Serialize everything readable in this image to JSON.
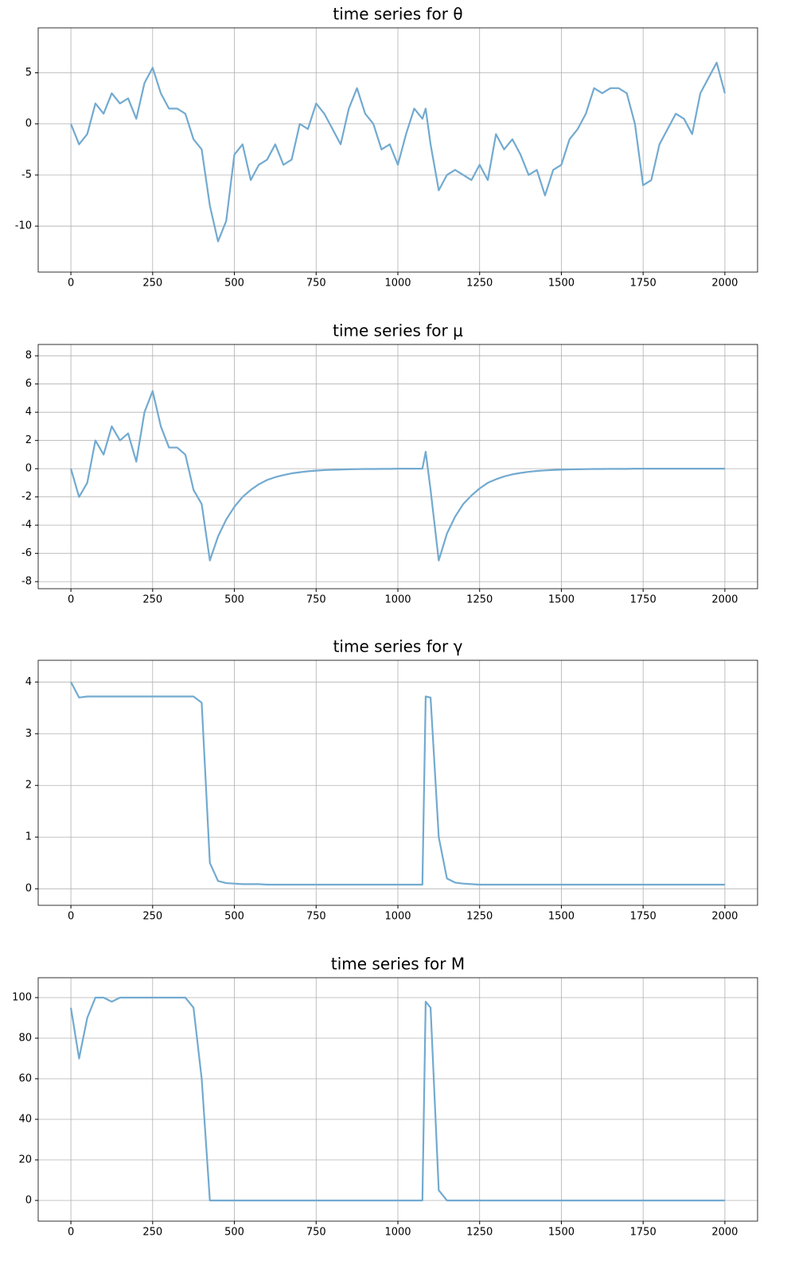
{
  "chart_data": [
    {
      "type": "line",
      "title": "time series for θ",
      "color": "#72aad0",
      "grid": true,
      "xlim": [
        -100,
        2100
      ],
      "xticks": [
        0,
        250,
        500,
        750,
        1000,
        1250,
        1500,
        1750,
        2000
      ],
      "ylim": [
        -14.5,
        9.4
      ],
      "yticks": [
        -10,
        -5,
        0,
        5
      ],
      "x": [
        0,
        25,
        50,
        75,
        100,
        125,
        150,
        175,
        200,
        225,
        250,
        275,
        300,
        325,
        350,
        375,
        400,
        425,
        450,
        475,
        500,
        525,
        550,
        575,
        600,
        625,
        650,
        675,
        700,
        725,
        750,
        775,
        800,
        825,
        850,
        875,
        900,
        925,
        950,
        975,
        1000,
        1025,
        1050,
        1075,
        1085,
        1100,
        1125,
        1150,
        1175,
        1200,
        1225,
        1250,
        1275,
        1300,
        1325,
        1350,
        1375,
        1400,
        1425,
        1450,
        1475,
        1500,
        1525,
        1550,
        1575,
        1600,
        1625,
        1650,
        1675,
        1700,
        1725,
        1750,
        1775,
        1800,
        1825,
        1850,
        1875,
        1900,
        1925,
        1950,
        1975,
        2000
      ],
      "values": [
        0,
        -2,
        -1,
        2,
        1,
        3,
        2,
        2.5,
        0.5,
        4,
        5.5,
        3,
        1.5,
        1.5,
        1,
        -1.5,
        -2.5,
        -8,
        -11.5,
        -9.5,
        -3,
        -2,
        -5.5,
        -4,
        -3.5,
        -2,
        -4,
        -3.5,
        0,
        -0.5,
        2,
        1,
        -0.5,
        -2,
        1.5,
        3.5,
        1,
        0,
        -2.5,
        -2,
        -4,
        -1,
        1.5,
        0.5,
        1.5,
        -2,
        -6.5,
        -5,
        -4.5,
        -5,
        -5.5,
        -4,
        -5.5,
        -1,
        -2.5,
        -1.5,
        -3,
        -5,
        -4.5,
        -7,
        -4.5,
        -4,
        -1.5,
        -0.5,
        1,
        3.5,
        3,
        3.5,
        3.5,
        3,
        0,
        -6,
        -5.5,
        -2,
        -0.5,
        1,
        0.5,
        -1,
        3,
        4.5,
        6,
        3
      ]
    },
    {
      "type": "line",
      "title": "time series for μ",
      "color": "#72aad0",
      "grid": true,
      "xlim": [
        -100,
        2100
      ],
      "xticks": [
        0,
        250,
        500,
        750,
        1000,
        1250,
        1500,
        1750,
        2000
      ],
      "ylim": [
        -8.5,
        8.8
      ],
      "yticks": [
        -8,
        -6,
        -4,
        -2,
        0,
        2,
        4,
        6,
        8
      ],
      "x": [
        0,
        25,
        50,
        75,
        100,
        125,
        150,
        175,
        200,
        225,
        250,
        275,
        300,
        325,
        350,
        375,
        400,
        425,
        450,
        475,
        500,
        525,
        550,
        575,
        600,
        625,
        650,
        675,
        700,
        725,
        750,
        775,
        800,
        825,
        850,
        875,
        900,
        925,
        950,
        975,
        1000,
        1025,
        1050,
        1075,
        1085,
        1100,
        1125,
        1150,
        1175,
        1200,
        1225,
        1250,
        1275,
        1300,
        1325,
        1350,
        1375,
        1400,
        1425,
        1450,
        1475,
        1500,
        1525,
        1550,
        1575,
        1600,
        1625,
        1650,
        1675,
        1700,
        1725,
        1750,
        1775,
        1800,
        1825,
        1850,
        1875,
        1900,
        1925,
        1950,
        1975,
        2000
      ],
      "values": [
        0,
        -2,
        -1,
        2,
        1,
        3,
        2,
        2.5,
        0.5,
        4,
        5.5,
        3,
        1.5,
        1.5,
        1,
        -1.5,
        -2.5,
        -6.5,
        -4.8,
        -3.6,
        -2.7,
        -2,
        -1.5,
        -1.1,
        -0.8,
        -0.6,
        -0.45,
        -0.33,
        -0.25,
        -0.18,
        -0.14,
        -0.1,
        -0.08,
        -0.06,
        -0.04,
        -0.03,
        -0.02,
        -0.02,
        -0.01,
        -0.01,
        0,
        0,
        0,
        0,
        1.2,
        -1.5,
        -6.5,
        -4.6,
        -3.4,
        -2.5,
        -1.9,
        -1.4,
        -1,
        -0.75,
        -0.55,
        -0.4,
        -0.3,
        -0.22,
        -0.16,
        -0.12,
        -0.09,
        -0.07,
        -0.05,
        -0.04,
        -0.03,
        -0.02,
        -0.02,
        -0.01,
        -0.01,
        -0.01,
        0,
        0,
        0,
        0,
        0,
        0,
        0,
        0,
        0,
        0,
        0,
        0
      ]
    },
    {
      "type": "line",
      "title": "time series for γ",
      "color": "#72aad0",
      "grid": true,
      "xlim": [
        -100,
        2100
      ],
      "xticks": [
        0,
        250,
        500,
        750,
        1000,
        1250,
        1500,
        1750,
        2000
      ],
      "ylim": [
        -0.32,
        4.42
      ],
      "yticks": [
        0,
        1,
        2,
        3,
        4
      ],
      "x": [
        0,
        25,
        50,
        75,
        100,
        125,
        150,
        175,
        200,
        225,
        250,
        275,
        300,
        325,
        350,
        375,
        400,
        425,
        450,
        475,
        500,
        525,
        550,
        575,
        600,
        625,
        650,
        675,
        700,
        725,
        750,
        775,
        800,
        825,
        850,
        875,
        900,
        925,
        950,
        975,
        1000,
        1025,
        1050,
        1075,
        1085,
        1100,
        1125,
        1150,
        1175,
        1200,
        1225,
        1250,
        1275,
        1300,
        1325,
        1350,
        1375,
        1400,
        1425,
        1450,
        1475,
        1500,
        1525,
        1550,
        1575,
        1600,
        1625,
        1650,
        1675,
        1700,
        1725,
        1750,
        1775,
        1800,
        1825,
        1850,
        1875,
        1900,
        1925,
        1950,
        1975,
        2000
      ],
      "values": [
        4,
        3.7,
        3.72,
        3.72,
        3.72,
        3.72,
        3.72,
        3.72,
        3.72,
        3.72,
        3.72,
        3.72,
        3.72,
        3.72,
        3.72,
        3.72,
        3.6,
        0.5,
        0.15,
        0.11,
        0.1,
        0.09,
        0.09,
        0.09,
        0.08,
        0.08,
        0.08,
        0.08,
        0.08,
        0.08,
        0.08,
        0.08,
        0.08,
        0.08,
        0.08,
        0.08,
        0.08,
        0.08,
        0.08,
        0.08,
        0.08,
        0.08,
        0.08,
        0.08,
        3.72,
        3.7,
        1,
        0.2,
        0.12,
        0.1,
        0.09,
        0.08,
        0.08,
        0.08,
        0.08,
        0.08,
        0.08,
        0.08,
        0.08,
        0.08,
        0.08,
        0.08,
        0.08,
        0.08,
        0.08,
        0.08,
        0.08,
        0.08,
        0.08,
        0.08,
        0.08,
        0.08,
        0.08,
        0.08,
        0.08,
        0.08,
        0.08,
        0.08,
        0.08,
        0.08,
        0.08,
        0.08
      ]
    },
    {
      "type": "line",
      "title": "time series for M",
      "color": "#72aad0",
      "grid": true,
      "xlim": [
        -100,
        2100
      ],
      "xticks": [
        0,
        250,
        500,
        750,
        1000,
        1250,
        1500,
        1750,
        2000
      ],
      "ylim": [
        -10.2,
        109.8
      ],
      "yticks": [
        0,
        20,
        40,
        60,
        80,
        100
      ],
      "x": [
        0,
        25,
        50,
        75,
        100,
        125,
        150,
        175,
        200,
        225,
        250,
        275,
        300,
        325,
        350,
        375,
        400,
        425,
        450,
        475,
        500,
        525,
        550,
        575,
        600,
        625,
        650,
        675,
        700,
        725,
        750,
        775,
        800,
        825,
        850,
        875,
        900,
        925,
        950,
        975,
        1000,
        1025,
        1050,
        1075,
        1085,
        1100,
        1125,
        1150,
        1175,
        1200,
        1225,
        1250,
        1275,
        1300,
        1325,
        1350,
        1375,
        1400,
        1425,
        1450,
        1475,
        1500,
        1525,
        1550,
        1575,
        1600,
        1625,
        1650,
        1675,
        1700,
        1725,
        1750,
        1775,
        1800,
        1825,
        1850,
        1875,
        1900,
        1925,
        1950,
        1975,
        2000
      ],
      "values": [
        95,
        70,
        90,
        100,
        100,
        98,
        100,
        100,
        100,
        100,
        100,
        100,
        100,
        100,
        100,
        95,
        60,
        0,
        0,
        0,
        0,
        0,
        0,
        0,
        0,
        0,
        0,
        0,
        0,
        0,
        0,
        0,
        0,
        0,
        0,
        0,
        0,
        0,
        0,
        0,
        0,
        0,
        0,
        0,
        98,
        95,
        5,
        0,
        0,
        0,
        0,
        0,
        0,
        0,
        0,
        0,
        0,
        0,
        0,
        0,
        0,
        0,
        0,
        0,
        0,
        0,
        0,
        0,
        0,
        0,
        0,
        0,
        0,
        0,
        0,
        0,
        0,
        0,
        0,
        0,
        0,
        0
      ]
    }
  ]
}
